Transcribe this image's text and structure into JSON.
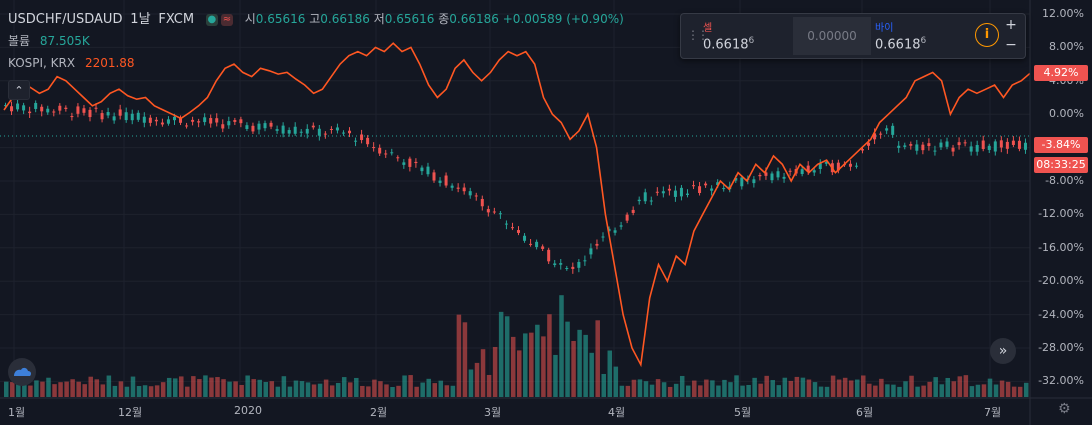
{
  "legend": {
    "symbol": "USDCHF/USDAUD",
    "interval": "1날",
    "source": "FXCM",
    "open_label": "시",
    "open_value": "0.65616",
    "high_label": "고",
    "high_value": "0.66186",
    "low_label": "저",
    "low_value": "0.65616",
    "close_label": "종",
    "close_value": "0.66186",
    "change": "+0.00589 (+0.90%)",
    "volume_label": "볼륨",
    "volume_value": "87.505K",
    "compare_label": "KOSPI, KRX",
    "compare_value": "2201.88"
  },
  "trade": {
    "sell_label": "셀",
    "sell_price": "0.6618",
    "sell_sup": "6",
    "spread": "0.00000",
    "buy_label": "바이",
    "buy_price": "0.6618",
    "buy_sup": "6",
    "info_icon": "i",
    "plus": "+",
    "minus": "−"
  },
  "axis": {
    "y_labels": [
      "12.00%",
      "8.00%",
      "4.00%",
      "0.00%",
      "-4.00%",
      "-8.00%",
      "-12.00%",
      "-16.00%",
      "-20.00%",
      "-24.00%",
      "-28.00%",
      "-32.00%"
    ],
    "tag_compare": "4.92%",
    "tag_main": "-3.84%",
    "tag_time": "08:33:25",
    "x_labels": [
      "1월",
      "12월",
      "2020",
      "2월",
      "3월",
      "4월",
      "5월",
      "6월",
      "7월"
    ]
  },
  "icons": {
    "collapse": "chevron-up-icon",
    "scroll": "double-chevron-right-icon",
    "settings": "gear-icon",
    "logo": "tradingview-logo-icon"
  },
  "colors": {
    "background": "#131722",
    "up": "#26a69a",
    "down": "#ef5350",
    "compare_line": "#ff5722",
    "baseline": "#26a69a"
  },
  "chart_data": {
    "type": "line",
    "ylim": [
      -34,
      13
    ],
    "compare_series": [
      0.5,
      2.0,
      3.8,
      3.2,
      2.5,
      3.0,
      4.5,
      4.0,
      3.0,
      2.0,
      1.0,
      1.5,
      2.5,
      3.0,
      2.2,
      1.8,
      2.0,
      1.0,
      0.5,
      0.0,
      -0.5,
      0.2,
      1.0,
      2.0,
      4.0,
      5.5,
      6.0,
      5.0,
      4.5,
      5.5,
      5.2,
      4.8,
      5.0,
      4.2,
      3.5,
      2.5,
      3.0,
      4.5,
      6.0,
      7.0,
      7.5,
      7.0,
      8.0,
      7.5,
      8.5,
      7.5,
      8.0,
      6.0,
      3.5,
      2.0,
      3.0,
      5.5,
      6.5,
      5.0,
      4.0,
      5.0,
      6.5,
      7.5,
      7.0,
      7.5,
      6.0,
      2.0,
      0.0,
      -1.0,
      -3.0,
      -2.0,
      0.0,
      -4.0,
      -12.0,
      -18.0,
      -24.0,
      -28.0,
      -30.0,
      -22.0,
      -18.0,
      -20.0,
      -17.0,
      -18.0,
      -14.0,
      -12.0,
      -10.0,
      -8.0,
      -9.0,
      -7.0,
      -8.0,
      -6.0,
      -7.0,
      -5.0,
      -6.0,
      -8.0,
      -6.0,
      -7.0,
      -6.0,
      -5.5,
      -7.0,
      -6.0,
      -5.0,
      -4.0,
      -3.0,
      -1.0,
      0.0,
      1.0,
      2.0,
      4.0,
      4.5,
      5.0,
      4.0,
      0.0,
      2.0,
      3.0,
      2.5,
      3.0,
      3.5,
      2.0,
      3.5,
      4.0,
      4.9
    ]
  }
}
